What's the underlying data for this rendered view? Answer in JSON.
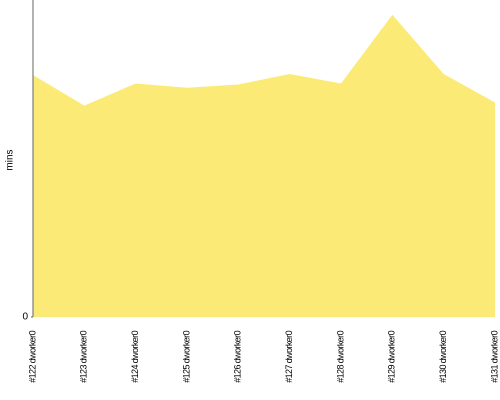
{
  "chart_data": {
    "type": "area",
    "y_label": "mins",
    "categories": [
      "#122 dworker0",
      "#123 dworker0",
      "#124 dworker0",
      "#125 dworker0",
      "#126 dworker0",
      "#127 dworker0",
      "#128 dworker0",
      "#129 dworker0",
      "#130 dworker0",
      "#131 dworker0"
    ],
    "values": [
      22.9,
      20.0,
      22.1,
      21.7,
      22.0,
      23.0,
      22.1,
      28.6,
      23.0,
      20.3
    ],
    "color": "#fcea76",
    "ylim": [
      0,
      30
    ],
    "yticks": [
      0
    ]
  }
}
